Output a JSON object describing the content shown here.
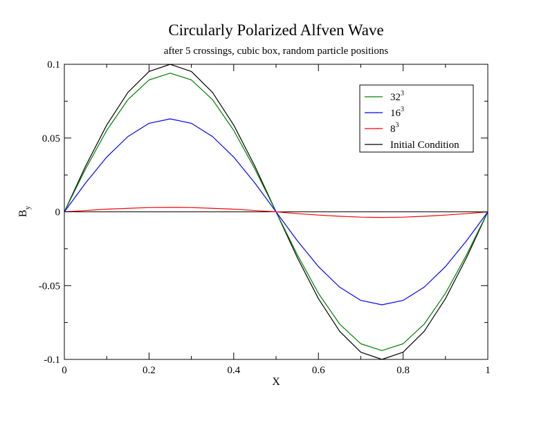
{
  "chart_data": {
    "type": "line",
    "title": "Circularly Polarized Alfven Wave",
    "subtitle": "after 5 crossings, cubic box, random particle positions",
    "xlabel": "X",
    "ylabel": "B",
    "ylabel_sub": "y",
    "xlim": [
      0,
      1
    ],
    "ylim": [
      -0.1,
      0.1
    ],
    "x_ticks": [
      {
        "value": 0,
        "label": "0"
      },
      {
        "value": 0.2,
        "label": "0.2"
      },
      {
        "value": 0.4,
        "label": "0.4"
      },
      {
        "value": 0.6,
        "label": "0.6"
      },
      {
        "value": 0.8,
        "label": "0.8"
      },
      {
        "value": 1,
        "label": "1"
      }
    ],
    "y_ticks": [
      {
        "value": -0.1,
        "label": "-0.1"
      },
      {
        "value": -0.05,
        "label": "-0.05"
      },
      {
        "value": 0,
        "label": "0"
      },
      {
        "value": 0.05,
        "label": "0.05"
      },
      {
        "value": 0.1,
        "label": "0.1"
      }
    ],
    "legend_position": "top-right",
    "grid": false,
    "series": [
      {
        "name": "32",
        "name_sup": "3",
        "color": "#008000",
        "x": [
          0,
          0.05,
          0.1,
          0.15,
          0.2,
          0.25,
          0.3,
          0.35,
          0.4,
          0.45,
          0.5,
          0.55,
          0.6,
          0.65,
          0.7,
          0.75,
          0.8,
          0.85,
          0.9,
          0.95,
          1
        ],
        "y": [
          0,
          0.029,
          0.0552,
          0.076,
          0.0894,
          0.094,
          0.0894,
          0.076,
          0.0552,
          0.029,
          0,
          -0.029,
          -0.0552,
          -0.076,
          -0.0894,
          -0.094,
          -0.0894,
          -0.076,
          -0.0552,
          -0.029,
          0
        ]
      },
      {
        "name": "16",
        "name_sup": "3",
        "color": "#0000ff",
        "x": [
          0,
          0.05,
          0.1,
          0.15,
          0.2,
          0.25,
          0.3,
          0.35,
          0.4,
          0.45,
          0.5,
          0.55,
          0.6,
          0.65,
          0.7,
          0.75,
          0.8,
          0.85,
          0.9,
          0.95,
          1
        ],
        "y": [
          0,
          0.0195,
          0.0371,
          0.051,
          0.06,
          0.063,
          0.06,
          0.051,
          0.0371,
          0.0195,
          0,
          -0.0195,
          -0.0371,
          -0.051,
          -0.06,
          -0.063,
          -0.06,
          -0.051,
          -0.0371,
          -0.0195,
          0
        ]
      },
      {
        "name": "8",
        "name_sup": "3",
        "color": "#ff0000",
        "x": [
          0,
          0.05,
          0.1,
          0.15,
          0.2,
          0.25,
          0.3,
          0.35,
          0.4,
          0.45,
          0.5,
          0.55,
          0.6,
          0.65,
          0.7,
          0.75,
          0.8,
          0.85,
          0.9,
          0.95,
          1
        ],
        "y": [
          0,
          0.0009,
          0.0018,
          0.0024,
          0.0029,
          0.003,
          0.0029,
          0.0024,
          0.0018,
          0.0009,
          0,
          -0.0012,
          -0.0022,
          -0.003,
          -0.0036,
          -0.0038,
          -0.0036,
          -0.003,
          -0.0022,
          -0.0012,
          0
        ]
      },
      {
        "name": "Initial Condition",
        "name_sup": "",
        "color": "#000000",
        "x": [
          0,
          0.05,
          0.1,
          0.15,
          0.2,
          0.25,
          0.3,
          0.35,
          0.4,
          0.45,
          0.5,
          0.55,
          0.6,
          0.65,
          0.7,
          0.75,
          0.8,
          0.85,
          0.9,
          0.95,
          1
        ],
        "y": [
          0,
          0.0309,
          0.0588,
          0.0809,
          0.0951,
          0.1,
          0.0951,
          0.0809,
          0.0588,
          0.0309,
          0,
          -0.0309,
          -0.0588,
          -0.0809,
          -0.0951,
          -0.1,
          -0.0951,
          -0.0809,
          -0.0588,
          -0.0309,
          0
        ]
      }
    ],
    "zero_line": {
      "y": 0,
      "color": "#000000"
    }
  }
}
